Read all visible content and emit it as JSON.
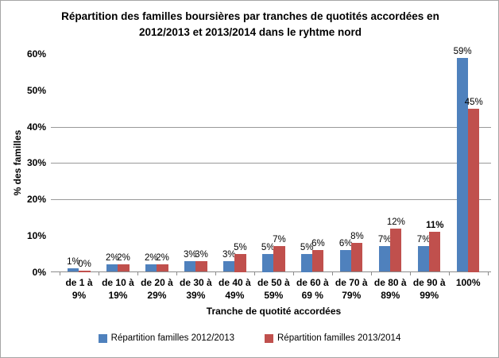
{
  "chart_data": {
    "type": "bar",
    "title_lines": [
      "Répartition des familles boursières par tranches de quotités accordées en",
      "2012/2013 et 2013/2014 dans le ryhtme nord"
    ],
    "ylabel": "% des familles",
    "xlabel": "Tranche de quotité accordées",
    "categories": [
      [
        "de 1 à",
        "9%"
      ],
      [
        "de 10 à",
        "19%"
      ],
      [
        "de 20 à",
        "29%"
      ],
      [
        "de 30 à",
        "39%"
      ],
      [
        "de 40 à",
        "49%"
      ],
      [
        "de 50 à",
        "59%"
      ],
      [
        "de 60 à",
        "69 %"
      ],
      [
        "de 70 à",
        "79%"
      ],
      [
        "de 80 à",
        "89%"
      ],
      [
        "de 90 à",
        "99%"
      ],
      [
        "100%",
        ""
      ]
    ],
    "series": [
      {
        "name": "Répartition familles 2012/2013",
        "color": "#4F81BD",
        "values": [
          1,
          2,
          2,
          3,
          3,
          5,
          5,
          6,
          7,
          7,
          59
        ]
      },
      {
        "name": "Répartition familles 2013/2014",
        "color": "#C0504D",
        "values": [
          0,
          2,
          2,
          3,
          5,
          7,
          6,
          8,
          12,
          11,
          45
        ]
      }
    ],
    "data_label_suffix": "%",
    "ylim": [
      0,
      60
    ],
    "ytick_labels": [
      "0%",
      "10%",
      "20%",
      "30%",
      "40%",
      "50%",
      "60%"
    ],
    "gridlines_at": [
      20,
      30,
      40
    ],
    "legend_position": "bottom",
    "emphasized_labels": [
      {
        "series": 1,
        "index": 9
      }
    ]
  },
  "colors": {
    "axis": "#8C8C8C",
    "grid": "#999999",
    "border": "#A6A6A6",
    "text": "#000000"
  }
}
